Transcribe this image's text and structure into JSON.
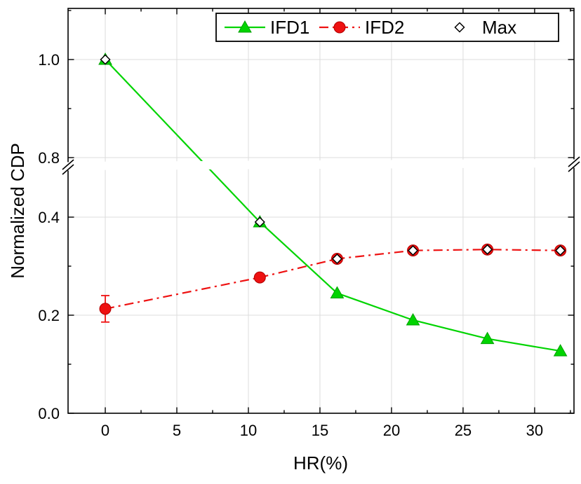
{
  "chart_data": {
    "type": "line",
    "title": "",
    "xlabel": "HR(%)",
    "ylabel": "Normalized CDP",
    "background": "#ffffff",
    "grid": true,
    "xlim": [
      -2.6,
      32.75
    ],
    "x_major_ticks": [
      0,
      5,
      10,
      15,
      20,
      25,
      30
    ],
    "x_minor_step": 2.5,
    "y_axis": {
      "break": true,
      "lower_ticks": [
        0.0,
        0.2,
        0.4
      ],
      "upper_ticks": [
        0.8,
        1.0
      ],
      "lower_range": [
        0,
        0.49
      ],
      "upper_range": [
        0.8,
        1.104
      ],
      "minor_ticks": [
        0.1,
        0.3,
        0.9,
        1.1
      ]
    },
    "legend": {
      "position": "top-center",
      "entries": [
        "IFD1",
        "IFD2",
        "Max"
      ]
    },
    "series": [
      {
        "name": "IFD1",
        "color": "#00d400",
        "edge_color": "#00a000",
        "line_style": "solid",
        "marker": "filled-triangle",
        "x": [
          0,
          10.8,
          16.2,
          21.5,
          26.7,
          31.8
        ],
        "y": [
          1.0,
          0.39,
          0.245,
          0.19,
          0.152,
          0.127
        ]
      },
      {
        "name": "IFD2",
        "color": "#ee1111",
        "edge_color": "#b00000",
        "line_style": "dash-dot",
        "marker": "filled-circle",
        "x": [
          0,
          10.8,
          16.2,
          21.5,
          26.7,
          31.8
        ],
        "y": [
          0.213,
          0.277,
          0.315,
          0.332,
          0.334,
          0.332
        ],
        "y_error": [
          0.027,
          0,
          0,
          0,
          0,
          0
        ]
      },
      {
        "name": "Max",
        "color": "#000000",
        "fill": "#ffffff",
        "line_style": "none",
        "marker": "open-diamond",
        "x": [
          0,
          10.8,
          16.2,
          21.5,
          26.7,
          31.8
        ],
        "y": [
          1.0,
          0.39,
          0.315,
          0.332,
          0.334,
          0.332
        ]
      }
    ]
  }
}
